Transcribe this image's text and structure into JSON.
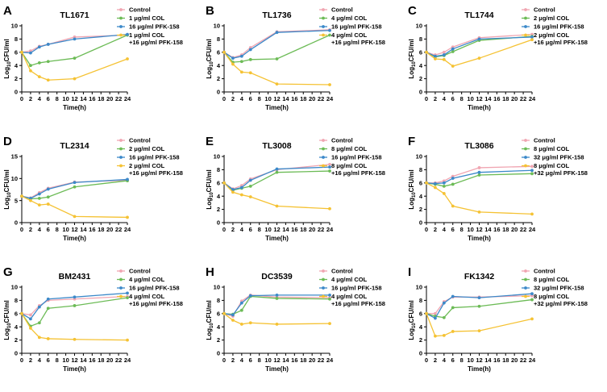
{
  "x_ticks": [
    "0",
    "2",
    "4",
    "6",
    "8",
    "10",
    "12",
    "14",
    "16",
    "18",
    "20",
    "22",
    "24"
  ],
  "series_colors": {
    "control": "#f0a5b1",
    "col": "#6cbb56",
    "pfk": "#3c89c9",
    "combo": "#f5c233"
  },
  "chart_data": [
    {
      "panel": "A",
      "title": "TL1671",
      "type": "line",
      "xlabel": "Time(h)",
      "ylabel_base": "Log",
      "ylabel_sub": "10",
      "ylabel_unit": "CFU/ml",
      "xlim": [
        0,
        24
      ],
      "ylim": [
        0,
        10
      ],
      "yticks": [
        "0",
        "2",
        "4",
        "6",
        "8",
        "10"
      ],
      "ytick_values": [
        0,
        2,
        4,
        6,
        8,
        10
      ],
      "x": [
        0,
        2,
        4,
        6,
        12,
        24
      ],
      "series": [
        {
          "key": "control",
          "name": "Control",
          "values": [
            6.0,
            6.2,
            6.9,
            7.2,
            8.3,
            8.6
          ]
        },
        {
          "key": "col",
          "name": "1 μg/ml COL",
          "values": [
            6.0,
            4.0,
            4.4,
            4.6,
            5.1,
            8.6
          ]
        },
        {
          "key": "pfk",
          "name": "16 μg/ml PFK-158",
          "values": [
            6.0,
            5.9,
            6.8,
            7.2,
            8.0,
            8.7
          ]
        },
        {
          "key": "combo",
          "name": "1 μg/ml COL",
          "name2": "+16 μg/ml PFK-158",
          "values": [
            6.0,
            3.2,
            2.3,
            1.8,
            2.0,
            5.0
          ]
        }
      ]
    },
    {
      "panel": "B",
      "title": "TL1736",
      "type": "line",
      "xlabel": "Time(h)",
      "ylabel_base": "Log",
      "ylabel_sub": "10",
      "ylabel_unit": "CFU/ml",
      "xlim": [
        0,
        24
      ],
      "ylim": [
        0,
        10
      ],
      "yticks": [
        "0",
        "2",
        "4",
        "6",
        "8",
        "10"
      ],
      "ytick_values": [
        0,
        2,
        4,
        6,
        8,
        10
      ],
      "x": [
        0,
        2,
        4,
        6,
        12,
        24
      ],
      "series": [
        {
          "key": "control",
          "name": "Control",
          "values": [
            6.0,
            5.2,
            5.6,
            6.7,
            9.1,
            9.4
          ]
        },
        {
          "key": "col",
          "name": "4 μg/ml COL",
          "values": [
            6.0,
            4.5,
            4.6,
            4.9,
            5.0,
            8.6
          ]
        },
        {
          "key": "pfk",
          "name": "16 μg/ml PFK-158",
          "values": [
            6.0,
            5.1,
            5.4,
            6.4,
            9.0,
            9.3
          ]
        },
        {
          "key": "combo",
          "name": "4 μg/ml COL",
          "name2": "+16 μg/ml PFK-158",
          "values": [
            6.0,
            4.2,
            3.0,
            2.9,
            1.2,
            1.1
          ]
        }
      ]
    },
    {
      "panel": "C",
      "title": "TL1744",
      "type": "line",
      "xlabel": "Time(h)",
      "ylabel_base": "Log",
      "ylabel_sub": "10",
      "ylabel_unit": "CFU/ml",
      "xlim": [
        0,
        24
      ],
      "ylim": [
        0,
        10
      ],
      "yticks": [
        "0",
        "2",
        "4",
        "6",
        "8",
        "10"
      ],
      "ytick_values": [
        0,
        2,
        4,
        6,
        8,
        10
      ],
      "x": [
        0,
        2,
        4,
        6,
        12,
        24
      ],
      "series": [
        {
          "key": "control",
          "name": "Control",
          "values": [
            6.0,
            5.6,
            6.0,
            6.8,
            8.2,
            8.7
          ]
        },
        {
          "key": "col",
          "name": "2 μg/ml COL",
          "values": [
            6.0,
            5.3,
            5.5,
            6.1,
            7.8,
            8.4
          ]
        },
        {
          "key": "pfk",
          "name": "16 μg/ml PFK-158",
          "values": [
            6.0,
            5.4,
            5.6,
            6.5,
            8.0,
            8.3
          ]
        },
        {
          "key": "combo",
          "name": "2 μg/ml COL",
          "name2": "+16 μg/ml PFK-158",
          "values": [
            6.0,
            5.0,
            4.9,
            3.9,
            5.1,
            7.9
          ]
        }
      ]
    },
    {
      "panel": "D",
      "title": "TL2314",
      "type": "line",
      "xlabel": "Time(h)",
      "ylabel_base": "Log",
      "ylabel_sub": "10",
      "ylabel_unit": "CFU/ml",
      "xlim": [
        0,
        24
      ],
      "ylim": [
        0,
        15
      ],
      "yticks": [
        "0",
        "5",
        "10",
        "15"
      ],
      "ytick_values": [
        0,
        5,
        10,
        15
      ],
      "x": [
        0,
        2,
        4,
        6,
        12,
        24
      ],
      "series": [
        {
          "key": "control",
          "name": "Control",
          "values": [
            6.0,
            5.6,
            6.8,
            7.8,
            9.2,
            9.6
          ]
        },
        {
          "key": "col",
          "name": "2 μg/ml COL",
          "values": [
            6.0,
            5.4,
            5.5,
            5.8,
            8.1,
            9.5
          ]
        },
        {
          "key": "pfk",
          "name": "16 μg/ml PFK-158",
          "values": [
            6.0,
            5.5,
            6.5,
            7.6,
            9.1,
            9.8
          ]
        },
        {
          "key": "combo",
          "name": "2 μg/ml COL",
          "name2": "+16 μg/ml PFK-158",
          "values": [
            6.0,
            5.0,
            4.0,
            4.2,
            1.4,
            1.2
          ]
        }
      ]
    },
    {
      "panel": "E",
      "title": "TL3008",
      "type": "line",
      "xlabel": "Time(h)",
      "ylabel_base": "Log",
      "ylabel_sub": "10",
      "ylabel_unit": "CFU/ml",
      "xlim": [
        0,
        24
      ],
      "ylim": [
        0,
        10
      ],
      "yticks": [
        "0",
        "2",
        "4",
        "6",
        "8",
        "10"
      ],
      "ytick_values": [
        0,
        2,
        4,
        6,
        8,
        10
      ],
      "x": [
        0,
        2,
        4,
        6,
        12,
        24
      ],
      "series": [
        {
          "key": "control",
          "name": "Control",
          "values": [
            6.0,
            5.1,
            5.6,
            6.6,
            8.0,
            8.8
          ]
        },
        {
          "key": "col",
          "name": "8 μg/ml COL",
          "values": [
            6.0,
            4.9,
            5.2,
            5.5,
            7.6,
            7.8
          ]
        },
        {
          "key": "pfk",
          "name": "16 μg/ml PFK-158",
          "values": [
            6.0,
            5.0,
            5.3,
            6.4,
            8.1,
            8.4
          ]
        },
        {
          "key": "combo",
          "name": "8 μg/ml COL",
          "name2": "+16 μg/ml PFK-158",
          "values": [
            6.0,
            4.6,
            4.2,
            3.9,
            2.5,
            2.1
          ]
        }
      ]
    },
    {
      "panel": "F",
      "title": "TL3086",
      "type": "line",
      "xlabel": "Time(h)",
      "ylabel_base": "Log",
      "ylabel_sub": "10",
      "ylabel_unit": "CFU/ml",
      "xlim": [
        0,
        24
      ],
      "ylim": [
        0,
        10
      ],
      "yticks": [
        "0",
        "2",
        "4",
        "6",
        "8",
        "10"
      ],
      "ytick_values": [
        0,
        2,
        4,
        6,
        8,
        10
      ],
      "x": [
        0,
        2,
        4,
        6,
        12,
        24
      ],
      "series": [
        {
          "key": "control",
          "name": "Control",
          "values": [
            6.0,
            6.0,
            6.3,
            7.0,
            8.3,
            8.5
          ]
        },
        {
          "key": "col",
          "name": "8 μg/ml COL",
          "values": [
            6.0,
            5.8,
            5.5,
            5.8,
            7.2,
            7.4
          ]
        },
        {
          "key": "pfk",
          "name": "32 μg/ml PFK-158",
          "values": [
            6.0,
            5.9,
            6.0,
            6.7,
            7.6,
            7.9
          ]
        },
        {
          "key": "combo",
          "name": "8 μg/ml COL",
          "name2": "+32 μg/ml PFK-158",
          "values": [
            6.0,
            5.3,
            4.4,
            2.5,
            1.6,
            1.3
          ]
        }
      ]
    },
    {
      "panel": "G",
      "title": "BM2431",
      "type": "line",
      "xlabel": "Time(h)",
      "ylabel_base": "Log",
      "ylabel_sub": "10",
      "ylabel_unit": "CFU/ml",
      "xlim": [
        0,
        24
      ],
      "ylim": [
        0,
        10
      ],
      "yticks": [
        "0",
        "2",
        "4",
        "6",
        "8",
        "10"
      ],
      "ytick_values": [
        0,
        2,
        4,
        6,
        8,
        10
      ],
      "x": [
        0,
        2,
        4,
        6,
        12,
        24
      ],
      "series": [
        {
          "key": "control",
          "name": "Control",
          "values": [
            6.0,
            5.8,
            7.2,
            8.0,
            8.2,
            8.6
          ]
        },
        {
          "key": "col",
          "name": "4 μg/ml COL",
          "values": [
            6.0,
            4.1,
            4.6,
            6.8,
            7.2,
            8.4
          ]
        },
        {
          "key": "pfk",
          "name": "16 μg/ml PFK-158",
          "values": [
            6.0,
            5.2,
            7.0,
            8.2,
            8.5,
            9.1
          ]
        },
        {
          "key": "combo",
          "name": "4 μg/ml COL",
          "name2": "+16 μg/ml PFK-158",
          "values": [
            6.0,
            3.8,
            2.4,
            2.2,
            2.1,
            2.0
          ]
        }
      ]
    },
    {
      "panel": "H",
      "title": "DC3539",
      "type": "line",
      "xlabel": "Time(h)",
      "ylabel_base": "Log",
      "ylabel_sub": "10",
      "ylabel_unit": "CFU/ml",
      "xlim": [
        0,
        24
      ],
      "ylim": [
        0,
        10
      ],
      "yticks": [
        "0",
        "2",
        "4",
        "6",
        "8",
        "10"
      ],
      "ytick_values": [
        0,
        2,
        4,
        6,
        8,
        10
      ],
      "x": [
        0,
        2,
        4,
        6,
        12,
        24
      ],
      "series": [
        {
          "key": "control",
          "name": "Control",
          "values": [
            6.0,
            5.6,
            7.9,
            8.8,
            8.5,
            8.4
          ]
        },
        {
          "key": "col",
          "name": "4 μg/ml COL",
          "values": [
            6.0,
            5.9,
            6.5,
            8.6,
            8.3,
            8.2
          ]
        },
        {
          "key": "pfk",
          "name": "16 μg/ml PFK-158",
          "values": [
            6.0,
            5.8,
            7.6,
            8.7,
            8.8,
            8.8
          ]
        },
        {
          "key": "combo",
          "name": "4 μg/ml COL",
          "name2": "+16 μg/ml PFK-158",
          "values": [
            6.0,
            5.0,
            4.4,
            4.6,
            4.4,
            4.5
          ]
        }
      ]
    },
    {
      "panel": "I",
      "title": "FK1342",
      "type": "line",
      "xlabel": "Time(h)",
      "ylabel_base": "Log",
      "ylabel_sub": "10",
      "ylabel_unit": "CFU/ml",
      "xlim": [
        0,
        24
      ],
      "ylim": [
        0,
        10
      ],
      "yticks": [
        "0",
        "2",
        "4",
        "6",
        "8",
        "10"
      ],
      "ytick_values": [
        0,
        2,
        4,
        6,
        8,
        10
      ],
      "x": [
        0,
        2,
        4,
        6,
        12,
        24
      ],
      "series": [
        {
          "key": "control",
          "name": "Control",
          "values": [
            6.0,
            6.0,
            7.8,
            8.5,
            8.5,
            8.7
          ]
        },
        {
          "key": "col",
          "name": "8 μg/ml COL",
          "values": [
            6.0,
            5.6,
            5.4,
            6.9,
            7.1,
            8.1
          ]
        },
        {
          "key": "pfk",
          "name": "32 μg/ml PFK-158",
          "values": [
            6.0,
            5.3,
            7.6,
            8.6,
            8.4,
            9.0
          ]
        },
        {
          "key": "combo",
          "name": "8 μg/ml COL",
          "name2": "+32 μg/ml PFK-158",
          "values": [
            6.0,
            2.6,
            2.7,
            3.3,
            3.4,
            5.2
          ]
        }
      ]
    }
  ]
}
